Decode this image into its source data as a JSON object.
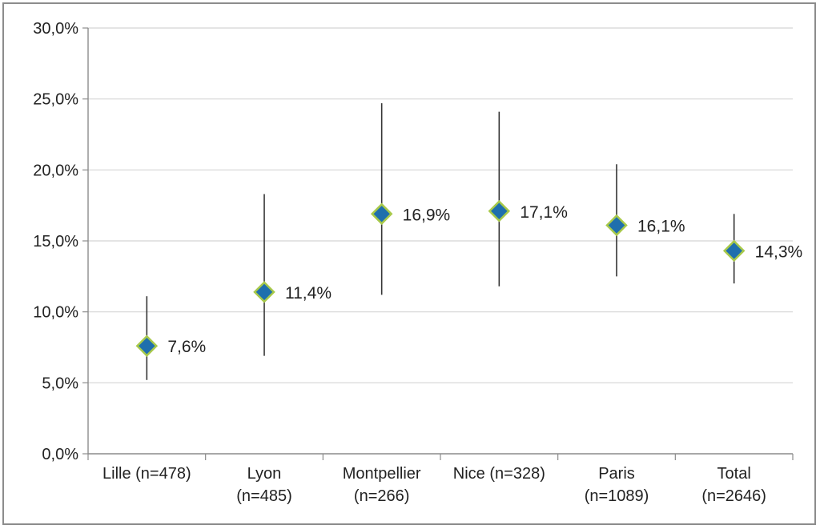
{
  "chart_data": {
    "type": "scatter",
    "title": "",
    "xlabel": "",
    "ylabel": "",
    "ylim": [
      0,
      30
    ],
    "y_ticks": [
      "0,0%",
      "5,0%",
      "10,0%",
      "15,0%",
      "20,0%",
      "25,0%",
      "30,0%"
    ],
    "y_tick_values": [
      0,
      5,
      10,
      15,
      20,
      25,
      30
    ],
    "grid": true,
    "legend": "none",
    "categories": [
      [
        "Lille (n=478)"
      ],
      [
        "Lyon",
        "(n=485)"
      ],
      [
        "Montpellier",
        "(n=266)"
      ],
      [
        "Nice (n=328)"
      ],
      [
        "Paris",
        "(n=1089)"
      ],
      [
        "Total",
        "(n=2646)"
      ]
    ],
    "values": [
      7.6,
      11.4,
      16.9,
      17.1,
      16.1,
      14.3
    ],
    "error_low": [
      5.2,
      6.9,
      11.2,
      11.8,
      12.5,
      12.0
    ],
    "error_high": [
      11.1,
      18.3,
      24.7,
      24.1,
      20.4,
      16.9
    ],
    "data_labels": [
      "7,6%",
      "11,4%",
      "16,9%",
      "17,1%",
      "16,1%",
      "14,3%"
    ],
    "colors": {
      "marker_fill": "#1f6fad",
      "marker_stroke": "#a8c94a",
      "error_bar": "#333333",
      "grid": "#d4d4d4",
      "axis": "#8c8c8c"
    }
  }
}
